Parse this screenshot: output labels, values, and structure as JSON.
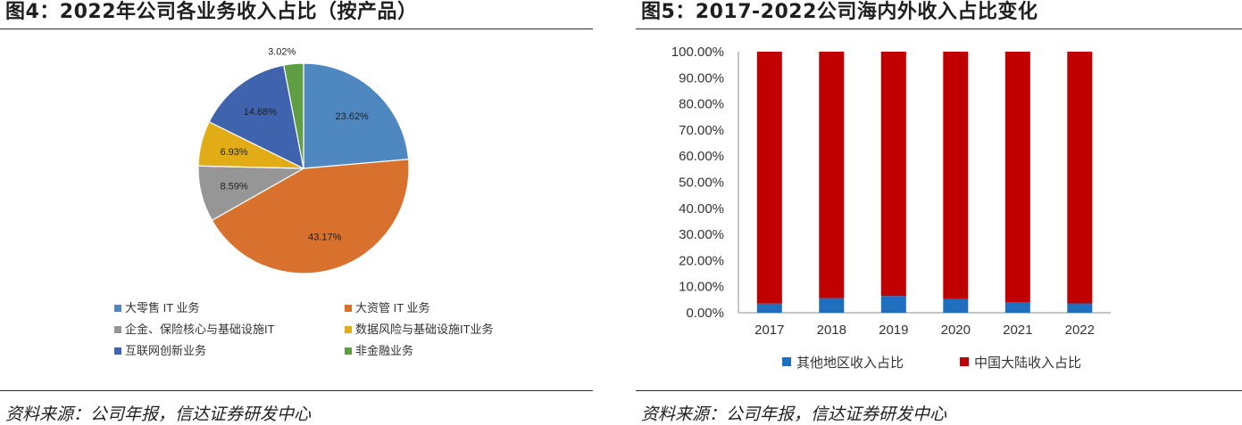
{
  "left": {
    "title": "图4：2022年公司各业务收入占比（按产品）",
    "source": "资料来源：公司年报，信达证券研发中心",
    "chart_data": {
      "type": "pie",
      "slices": [
        {
          "label": "大零售 IT 业务",
          "value": 23.62,
          "display": "23.62%",
          "color": "#4f88c0"
        },
        {
          "label": "大资管 IT 业务",
          "value": 43.17,
          "display": "43.17%",
          "color": "#d8702e"
        },
        {
          "label": "企金、保险核心与基础设施IT",
          "value": 8.59,
          "display": "8.59%",
          "color": "#969696"
        },
        {
          "label": "数据风险与基础设施IT业务",
          "value": 6.93,
          "display": "6.93%",
          "color": "#e2ac16"
        },
        {
          "label": "互联网创新业务",
          "value": 14.68,
          "display": "14.68%",
          "color": "#3f63ad"
        },
        {
          "label": "非金融业务",
          "value": 3.02,
          "display": "3.02%",
          "color": "#5f9e42"
        }
      ],
      "legend_position": "bottom"
    }
  },
  "right": {
    "title": "图5：2017-2022公司海内外收入占比变化",
    "source": "资料来源：公司年报，信达证券研发中心",
    "chart_data": {
      "type": "bar",
      "stacked": true,
      "categories": [
        "2017",
        "2018",
        "2019",
        "2020",
        "2021",
        "2022"
      ],
      "series": [
        {
          "name": "其他地区收入占比",
          "color": "#1f6fc0",
          "values": [
            3.5,
            5.6,
            6.4,
            5.2,
            4.1,
            3.6
          ]
        },
        {
          "name": "中国大陆收入占比",
          "color": "#c00000",
          "values": [
            96.5,
            94.4,
            93.6,
            94.8,
            95.9,
            96.4
          ]
        }
      ],
      "ylim": [
        0,
        100
      ],
      "y_ticks": [
        "0.00%",
        "10.00%",
        "20.00%",
        "30.00%",
        "40.00%",
        "50.00%",
        "60.00%",
        "70.00%",
        "80.00%",
        "90.00%",
        "100.00%"
      ],
      "legend_position": "bottom"
    }
  }
}
